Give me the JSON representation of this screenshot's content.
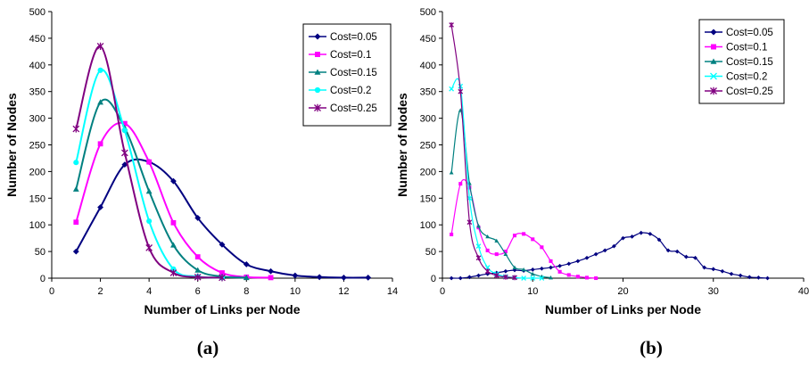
{
  "chart_data": [
    {
      "type": "line",
      "caption": "(a)",
      "xlabel": "Number of Links per Node",
      "ylabel": "Number of Nodes",
      "xlim": [
        0,
        14
      ],
      "ylim": [
        0,
        500
      ],
      "xticks": [
        0,
        2,
        4,
        6,
        8,
        10,
        12,
        14
      ],
      "yticks": [
        0,
        50,
        100,
        150,
        200,
        250,
        300,
        350,
        400,
        450,
        500
      ],
      "grid": false,
      "legend": "top-right",
      "series": [
        {
          "name": "Cost=0.05",
          "color": "#000080",
          "marker": "diamond",
          "x": [
            1,
            2,
            3,
            4,
            5,
            6,
            7,
            8,
            9,
            10,
            11,
            12,
            13
          ],
          "y": [
            50,
            133,
            213,
            218,
            182,
            113,
            63,
            26,
            13,
            5,
            2,
            1,
            1
          ]
        },
        {
          "name": "Cost=0.1",
          "color": "#ff00ff",
          "marker": "square",
          "x": [
            1,
            2,
            3,
            4,
            5,
            6,
            7,
            8,
            9
          ],
          "y": [
            105,
            252,
            290,
            218,
            104,
            40,
            10,
            2,
            1
          ]
        },
        {
          "name": "Cost=0.15",
          "color": "#008080",
          "marker": "triangle",
          "x": [
            1,
            2,
            3,
            4,
            5,
            6,
            7,
            8
          ],
          "y": [
            167,
            330,
            282,
            163,
            62,
            15,
            3,
            1
          ]
        },
        {
          "name": "Cost=0.2",
          "color": "#00ffff",
          "marker": "circle",
          "x": [
            1,
            2,
            3,
            4,
            5,
            6,
            7
          ],
          "y": [
            217,
            390,
            277,
            107,
            17,
            3,
            1
          ]
        },
        {
          "name": "Cost=0.25",
          "color": "#800080",
          "marker": "star",
          "x": [
            1,
            2,
            3,
            4,
            5,
            6,
            7
          ],
          "y": [
            280,
            435,
            235,
            57,
            10,
            2,
            1
          ]
        }
      ]
    },
    {
      "type": "line",
      "caption": "(b)",
      "xlabel": "Number of Links per Node",
      "ylabel": "Number of Nodes",
      "xlim": [
        0,
        40
      ],
      "ylim": [
        0,
        500
      ],
      "xticks": [
        0,
        10,
        20,
        30,
        40
      ],
      "yticks": [
        0,
        50,
        100,
        150,
        200,
        250,
        300,
        350,
        400,
        450,
        500
      ],
      "grid": false,
      "legend": "top-right",
      "series": [
        {
          "name": "Cost=0.05",
          "color": "#000080",
          "marker": "diamond",
          "x": [
            1,
            2,
            3,
            4,
            5,
            6,
            7,
            8,
            9,
            10,
            11,
            12,
            13,
            14,
            15,
            16,
            17,
            18,
            19,
            20,
            21,
            22,
            23,
            24,
            25,
            26,
            27,
            28,
            29,
            30,
            31,
            32,
            33,
            34,
            35,
            36
          ],
          "y": [
            0,
            0,
            2,
            5,
            8,
            10,
            13,
            15,
            14,
            16,
            18,
            20,
            23,
            27,
            32,
            38,
            45,
            52,
            60,
            75,
            78,
            85,
            83,
            72,
            52,
            50,
            40,
            38,
            20,
            17,
            13,
            8,
            5,
            2,
            1,
            0
          ]
        },
        {
          "name": "Cost=0.1",
          "color": "#ff00ff",
          "marker": "square",
          "x": [
            1,
            2,
            3,
            4,
            5,
            6,
            7,
            8,
            9,
            10,
            11,
            12,
            13,
            14,
            15,
            16,
            17
          ],
          "y": [
            82,
            177,
            170,
            95,
            52,
            45,
            50,
            80,
            83,
            73,
            58,
            32,
            12,
            6,
            3,
            1,
            0
          ]
        },
        {
          "name": "Cost=0.15",
          "color": "#008080",
          "marker": "triangle",
          "x": [
            1,
            2,
            3,
            4,
            5,
            6,
            7,
            8,
            9,
            10,
            11,
            12
          ],
          "y": [
            198,
            315,
            178,
            98,
            78,
            70,
            45,
            20,
            16,
            8,
            3,
            1
          ]
        },
        {
          "name": "Cost=0.2",
          "color": "#00ffff",
          "marker": "x",
          "x": [
            1,
            2,
            3,
            4,
            5,
            6,
            7,
            8,
            9,
            10,
            11
          ],
          "y": [
            355,
            360,
            150,
            60,
            20,
            8,
            3,
            1,
            0,
            0,
            0
          ]
        },
        {
          "name": "Cost=0.25",
          "color": "#800080",
          "marker": "star",
          "x": [
            1,
            2,
            3,
            4,
            5,
            6,
            7,
            8
          ],
          "y": [
            475,
            350,
            105,
            38,
            13,
            5,
            2,
            1
          ]
        }
      ]
    }
  ]
}
